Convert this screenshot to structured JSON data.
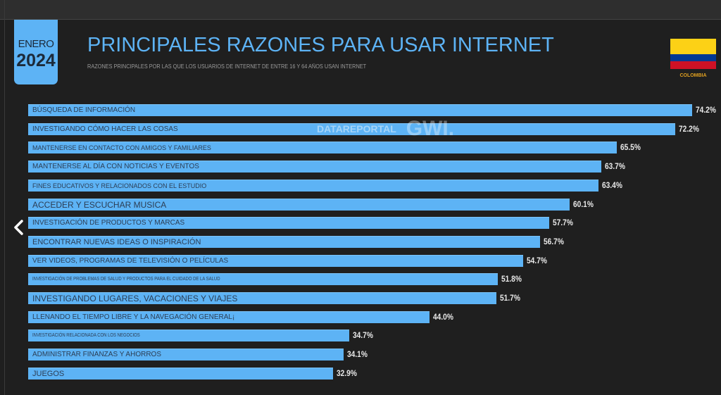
{
  "header": {
    "month": "ENERO",
    "year": "2024",
    "title": "PRINCIPALES RAZONES PARA USAR INTERNET",
    "subtitle": "RAZONES PRINCIPALES POR LAS QUE LOS USUARIOS DE INTERNET DE ENTRE 16 Y 64 AÑOS USAN INTERNET",
    "country": "COLOMBIA",
    "flag_colors": [
      "#fcd116",
      "#003893",
      "#ce1126"
    ]
  },
  "watermark": {
    "brand1": "DATAREPORTAL",
    "brand2": "GWI."
  },
  "nav": {
    "prev_icon": "chevron-left-icon"
  },
  "colors": {
    "bar": "#5db3f5",
    "background": "#1f1f1f",
    "accent": "#5db3f5"
  },
  "chart_data": {
    "type": "bar",
    "orientation": "horizontal",
    "title": "PRINCIPALES RAZONES PARA USAR INTERNET",
    "categories": [
      "BÚSQUEDA DE INFORMACIÓN",
      "INVESTIGANDO CÓMO HACER LAS COSAS",
      "MANTENERSE EN CONTACTO CON AMIGOS Y FAMILIARES",
      "MANTENERSE AL DÍA CON NOTICIAS Y EVENTOS",
      "FINES EDUCATIVOS Y RELACIONADOS CON EL ESTUDIO",
      "ACCEDER Y ESCUCHAR MUSICA",
      "INVESTIGACIÓN DE PRODUCTOS Y MARCAS",
      "ENCONTRAR NUEVAS IDEAS O INSPIRACIÓN",
      "VER VIDEOS, PROGRAMAS DE TELEVISIÓN O PELÍCULAS",
      "INVESTIGACIÓN DE PROBLEMAS DE SALUD Y PRODUCTOS PARA EL CUIDADO DE LA SALUD",
      "INVESTIGANDO LUGARES, VACACIONES Y VIAJES",
      "LLENANDO EL TIEMPO LIBRE Y LA NAVEGACIÓN GENERAL¡",
      "INVESTIGACIÓN RELACIONADA CON LOS NEGOCIOS",
      "ADMINISTRAR FINANZAS Y AHORROS",
      "JUEGOS"
    ],
    "values": [
      74.2,
      72.2,
      65.5,
      63.7,
      63.4,
      60.1,
      57.7,
      56.7,
      54.7,
      51.8,
      51.7,
      44.0,
      34.7,
      34.1,
      32.9
    ],
    "value_labels": [
      "74.2%",
      "72.2%",
      "65.5%",
      "63.7%",
      "63.4%",
      "60.1%",
      "57.7%",
      "56.7%",
      "54.7%",
      "51.8%",
      "51.7%",
      "44.0%",
      "34.7%",
      "34.1%",
      "32.9%"
    ],
    "unit": "%",
    "grid": false,
    "legend": "none"
  }
}
